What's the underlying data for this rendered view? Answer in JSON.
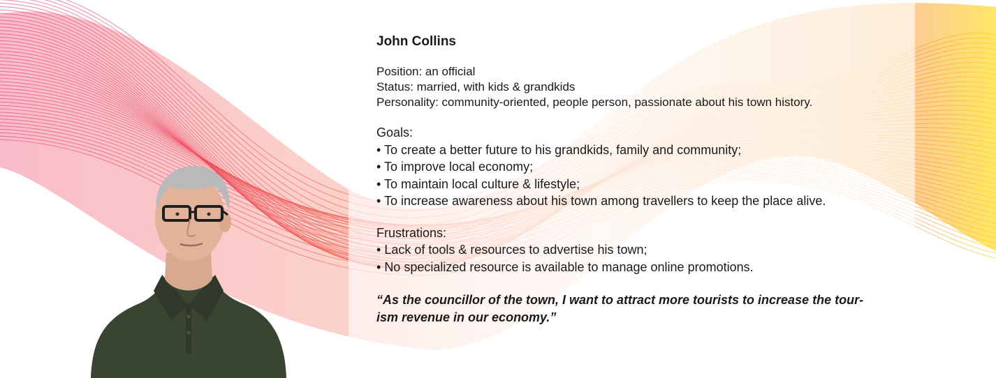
{
  "persona": {
    "name": "John Collins",
    "position": "Position: an official",
    "status": "Status: married, with kids & grandkids",
    "personality": "Personality: community-oriented, people person, passionate about his town history.",
    "goals_heading": "Goals:",
    "goals": [
      "To create a better future to his grandkids, family and community;",
      "To improve local economy;",
      "To maintain local culture & lifestyle;",
      "To increase awareness about his town among travellers to keep the place alive."
    ],
    "frustrations_heading": "Frustrations:",
    "frustrations": [
      "Lack of tools & resources to advertise his town;",
      "No specialized resource is available to manage online promotions."
    ],
    "quote": "“As the councillor of the town, I want to attract more tourists to increase the tour-ism revenue in our economy.”"
  },
  "colors": {
    "wave_pink": "#e8336d",
    "wave_red": "#f0564a",
    "wave_peach": "#f7b38e",
    "wave_orange": "#f7931e",
    "wave_yellow": "#ffd600",
    "shirt": "#3a4433",
    "hair": "#b9b9b9",
    "skin": "#e2b39a"
  }
}
